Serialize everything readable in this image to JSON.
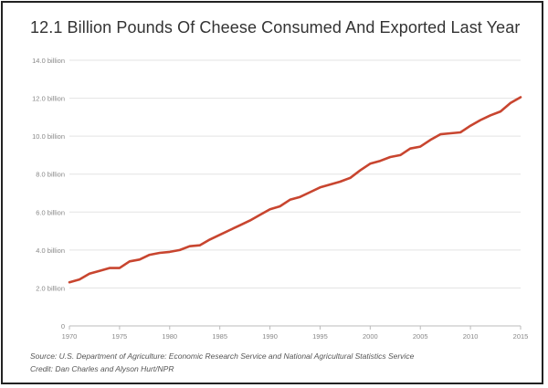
{
  "chart_data": {
    "type": "line",
    "title": "12.1 Billion Pounds Of Cheese Consumed And Exported Last Year",
    "xlabel": "",
    "ylabel": "",
    "xlim": [
      1970,
      2015
    ],
    "ylim": [
      0,
      14
    ],
    "x_ticks": [
      "1970",
      "1975",
      "1980",
      "1985",
      "1990",
      "1995",
      "2000",
      "2005",
      "2010",
      "2015"
    ],
    "y_ticks": [
      {
        "v": 0,
        "label": "0"
      },
      {
        "v": 2,
        "label": "2.0 billion"
      },
      {
        "v": 4,
        "label": "4.0 billion"
      },
      {
        "v": 6,
        "label": "6.0 billion"
      },
      {
        "v": 8,
        "label": "8.0 billion"
      },
      {
        "v": 10,
        "label": "10.0 billion"
      },
      {
        "v": 12,
        "label": "12.0 billion"
      },
      {
        "v": 14,
        "label": "14.0 billion"
      }
    ],
    "grid": "horizontal",
    "series": [
      {
        "color": "#c8452f",
        "x": [
          1970,
          1971,
          1972,
          1973,
          1974,
          1975,
          1976,
          1977,
          1978,
          1979,
          1980,
          1981,
          1982,
          1983,
          1984,
          1985,
          1986,
          1987,
          1988,
          1989,
          1990,
          1991,
          1992,
          1993,
          1994,
          1995,
          1996,
          1997,
          1998,
          1999,
          2000,
          2001,
          2002,
          2003,
          2004,
          2005,
          2006,
          2007,
          2008,
          2009,
          2010,
          2011,
          2012,
          2013,
          2014,
          2015
        ],
        "values": [
          2.3,
          2.45,
          2.75,
          2.9,
          3.05,
          3.05,
          3.4,
          3.5,
          3.75,
          3.85,
          3.9,
          4.0,
          4.2,
          4.25,
          4.55,
          4.8,
          5.05,
          5.3,
          5.55,
          5.85,
          6.15,
          6.3,
          6.65,
          6.8,
          7.05,
          7.3,
          7.45,
          7.6,
          7.8,
          8.2,
          8.55,
          8.7,
          8.9,
          9.0,
          9.35,
          9.45,
          9.8,
          10.1,
          10.15,
          10.2,
          10.55,
          10.85,
          11.1,
          11.3,
          11.75,
          12.05
        ]
      }
    ]
  },
  "footer": {
    "source": "Source: U.S. Department of Agriculture: Economic Research Service and National Agricultural Statistics Service",
    "credit": "Credit: Dan Charles and Alyson Hurt/NPR"
  }
}
